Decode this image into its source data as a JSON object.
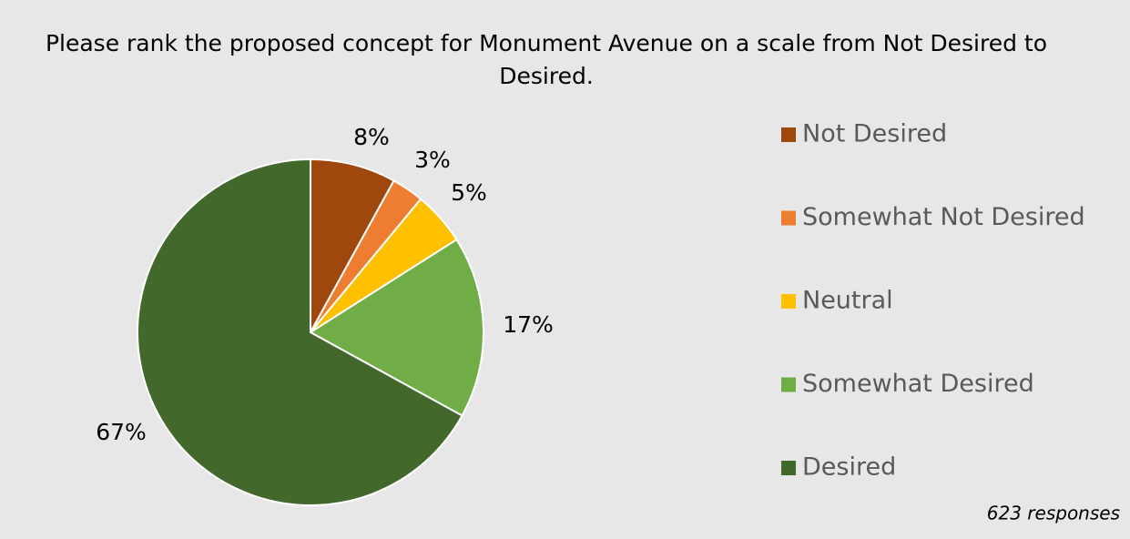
{
  "chart_data": {
    "type": "pie",
    "title": "Please rank the proposed concept for Monument Avenue on a scale from Not Desired to Desired.",
    "categories": [
      "Not Desired",
      "Somewhat Not Desired",
      "Neutral",
      "Somewhat Desired",
      "Desired"
    ],
    "values": [
      8,
      3,
      5,
      17,
      67
    ],
    "value_labels": [
      "8%",
      "3%",
      "5%",
      "17%",
      "67%"
    ],
    "colors": [
      "#9e480e",
      "#ed7d31",
      "#ffc000",
      "#70ad47",
      "#43682b"
    ],
    "legend": "right",
    "annotation": "623 responses"
  }
}
